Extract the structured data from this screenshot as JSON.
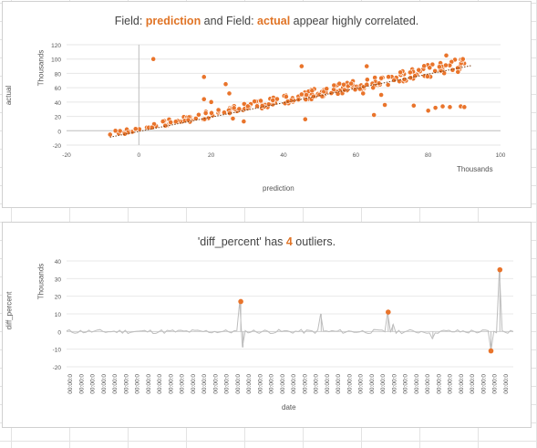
{
  "chart_data": [
    {
      "type": "scatter",
      "title": {
        "pre": "Field: ",
        "a": "prediction",
        "mid": " and Field: ",
        "b": "actual",
        "post": " appear highly correlated."
      },
      "xlabel": "prediction",
      "ylabel": "actual",
      "x_units_label": "Thousands",
      "y_units_label": "Thousands",
      "xlim": [
        -20,
        100
      ],
      "ylim": [
        -20,
        120
      ],
      "xticks": [
        -20,
        0,
        20,
        40,
        60,
        80,
        100
      ],
      "yticks": [
        -20,
        0,
        20,
        40,
        60,
        80,
        100,
        120
      ],
      "color": "#e9742b",
      "trend": {
        "x_start": -8,
        "x_end": 92,
        "slope": 1.0,
        "intercept": 3
      },
      "outliers": [
        {
          "x": 4,
          "y": 100
        },
        {
          "x": 18,
          "y": 75
        },
        {
          "x": 24,
          "y": 65
        },
        {
          "x": 25,
          "y": 52
        },
        {
          "x": 18,
          "y": 44
        },
        {
          "x": 20,
          "y": 40
        },
        {
          "x": 22,
          "y": 29
        },
        {
          "x": 29,
          "y": 13
        },
        {
          "x": 26,
          "y": 17
        },
        {
          "x": 45,
          "y": 90
        },
        {
          "x": 46,
          "y": 16
        },
        {
          "x": 63,
          "y": 90
        },
        {
          "x": 62,
          "y": 52
        },
        {
          "x": 65,
          "y": 22
        },
        {
          "x": 67,
          "y": 50
        },
        {
          "x": 68,
          "y": 36
        },
        {
          "x": 76,
          "y": 35
        },
        {
          "x": 80,
          "y": 28
        },
        {
          "x": 82,
          "y": 32
        },
        {
          "x": 84,
          "y": 34
        },
        {
          "x": 86,
          "y": 33
        },
        {
          "x": 89,
          "y": 34
        },
        {
          "x": 90,
          "y": 33
        },
        {
          "x": 85,
          "y": 105
        }
      ]
    },
    {
      "type": "line",
      "title": {
        "pre": "'diff_percent' has ",
        "count": "4",
        "post": " outliers."
      },
      "xlabel": "date",
      "ylabel": "diff_percent",
      "y_units_label": "Thousands",
      "ylim": [
        -20,
        40
      ],
      "yticks": [
        -20,
        -10,
        0,
        10,
        20,
        30,
        40
      ],
      "x_tick_label": "00:00:0",
      "x_tick_count": 40,
      "line_color": "#bdbdbd",
      "outlier_color": "#e9742b",
      "spikes": [
        {
          "pos": 0.39,
          "value": 17
        },
        {
          "pos": 0.395,
          "value": -9
        },
        {
          "pos": 0.57,
          "value": 10
        },
        {
          "pos": 0.72,
          "value": 11
        },
        {
          "pos": 0.73,
          "value": 4
        },
        {
          "pos": 0.82,
          "value": -4
        },
        {
          "pos": 0.95,
          "value": -11
        },
        {
          "pos": 0.97,
          "value": 35
        }
      ],
      "outliers": [
        {
          "pos": 0.39,
          "value": 17
        },
        {
          "pos": 0.72,
          "value": 11
        },
        {
          "pos": 0.95,
          "value": -11
        },
        {
          "pos": 0.97,
          "value": 35
        }
      ]
    }
  ]
}
